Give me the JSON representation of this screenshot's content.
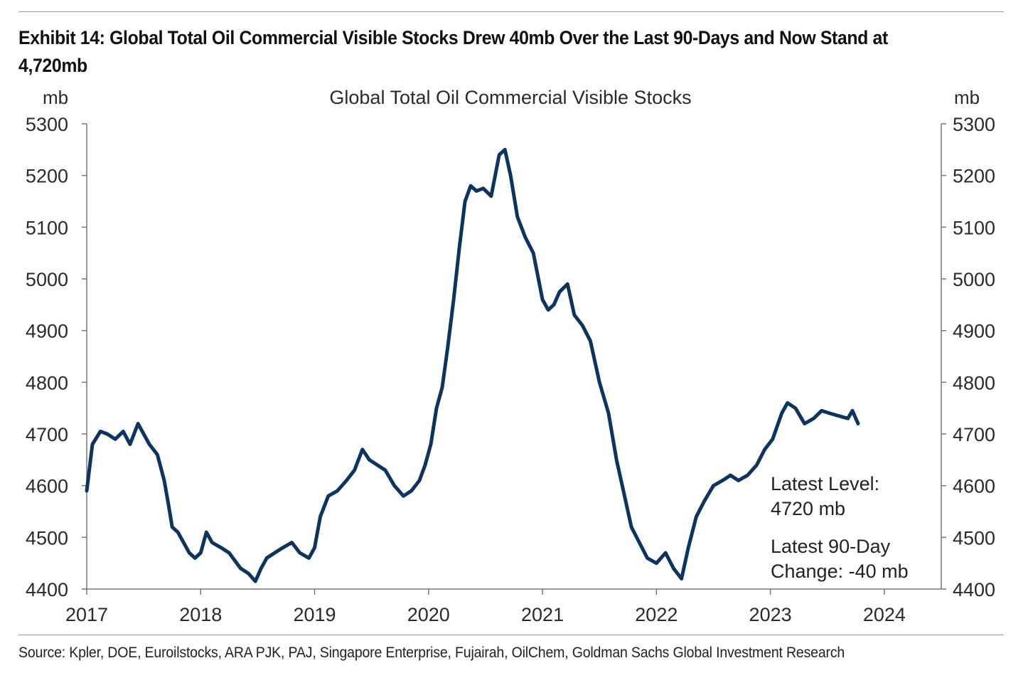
{
  "header": {
    "title": "Exhibit 14: Global Total Oil Commercial Visible Stocks Drew 40mb Over the Last 90-Days and Now Stand at 4,720mb"
  },
  "footer": {
    "source": "Source: Kpler, DOE, Euroilstocks, ARA PJK, PAJ, Singapore Enterprise, Fujairah, OilChem, Goldman Sachs Global Investment Research"
  },
  "colors": {
    "line": "#0d3461",
    "axis": "#777777"
  },
  "chart_data": {
    "type": "line",
    "title": "Global Total Oil Commercial Visible Stocks",
    "ylabel_left": "mb",
    "ylabel_right": "mb",
    "xlim": [
      2017,
      2024.5
    ],
    "ylim": [
      4400,
      5300
    ],
    "yticks": [
      4400,
      4500,
      4600,
      4700,
      4800,
      4900,
      5000,
      5100,
      5200,
      5300
    ],
    "ytick_labels": [
      "4400",
      "4500",
      "4600",
      "4700",
      "4800",
      "4900",
      "5000",
      "5100",
      "5200",
      "5300"
    ],
    "xticks": [
      2017,
      2018,
      2019,
      2020,
      2021,
      2022,
      2023,
      2024
    ],
    "xtick_labels": [
      "2017",
      "2018",
      "2019",
      "2020",
      "2021",
      "2022",
      "2023",
      "2024"
    ],
    "annotations": [
      {
        "line1": "Latest Level:",
        "line2": "4720 mb"
      },
      {
        "line1": "Latest 90-Day",
        "line2": "Change: -40 mb"
      }
    ],
    "series": [
      {
        "name": "Global Total Oil Commercial Visible Stocks",
        "x": [
          2017.0,
          2017.05,
          2017.12,
          2017.18,
          2017.25,
          2017.32,
          2017.38,
          2017.45,
          2017.5,
          2017.55,
          2017.62,
          2017.68,
          2017.72,
          2017.75,
          2017.8,
          2017.85,
          2017.9,
          2017.95,
          2018.0,
          2018.05,
          2018.1,
          2018.18,
          2018.25,
          2018.3,
          2018.35,
          2018.42,
          2018.48,
          2018.53,
          2018.58,
          2018.65,
          2018.72,
          2018.8,
          2018.87,
          2018.95,
          2019.0,
          2019.05,
          2019.12,
          2019.2,
          2019.28,
          2019.35,
          2019.42,
          2019.48,
          2019.55,
          2019.62,
          2019.7,
          2019.78,
          2019.85,
          2019.92,
          2019.97,
          2020.02,
          2020.07,
          2020.12,
          2020.17,
          2020.22,
          2020.27,
          2020.32,
          2020.37,
          2020.42,
          2020.48,
          2020.55,
          2020.62,
          2020.67,
          2020.72,
          2020.78,
          2020.85,
          2020.92,
          2021.0,
          2021.05,
          2021.1,
          2021.15,
          2021.22,
          2021.28,
          2021.35,
          2021.42,
          2021.5,
          2021.58,
          2021.65,
          2021.72,
          2021.78,
          2021.85,
          2021.92,
          2022.0,
          2022.08,
          2022.15,
          2022.22,
          2022.28,
          2022.35,
          2022.42,
          2022.5,
          2022.58,
          2022.65,
          2022.72,
          2022.8,
          2022.88,
          2022.95,
          2023.02,
          2023.1,
          2023.15,
          2023.22,
          2023.3,
          2023.38,
          2023.45,
          2023.52,
          2023.6,
          2023.68,
          2023.72,
          2023.77
        ],
        "values": [
          4590,
          4680,
          4705,
          4700,
          4690,
          4705,
          4680,
          4720,
          4700,
          4680,
          4660,
          4610,
          4560,
          4520,
          4510,
          4490,
          4470,
          4460,
          4470,
          4510,
          4490,
          4480,
          4470,
          4455,
          4440,
          4430,
          4415,
          4440,
          4460,
          4470,
          4480,
          4490,
          4470,
          4460,
          4480,
          4540,
          4580,
          4590,
          4610,
          4630,
          4670,
          4650,
          4640,
          4630,
          4600,
          4580,
          4590,
          4610,
          4640,
          4680,
          4750,
          4790,
          4870,
          4960,
          5060,
          5150,
          5180,
          5170,
          5175,
          5160,
          5240,
          5250,
          5200,
          5120,
          5080,
          5050,
          4960,
          4940,
          4950,
          4975,
          4990,
          4930,
          4910,
          4880,
          4800,
          4740,
          4650,
          4580,
          4520,
          4490,
          4460,
          4450,
          4470,
          4440,
          4420,
          4480,
          4540,
          4570,
          4600,
          4610,
          4620,
          4610,
          4620,
          4640,
          4670,
          4690,
          4740,
          4760,
          4750,
          4720,
          4730,
          4745,
          4740,
          4735,
          4730,
          4745,
          4720
        ]
      }
    ]
  }
}
